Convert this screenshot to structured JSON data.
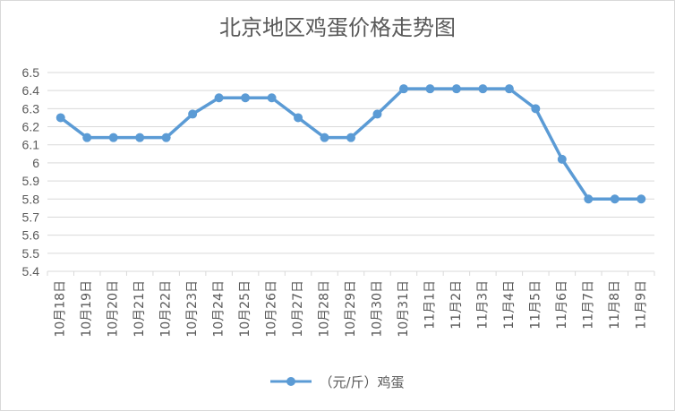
{
  "chart_data": {
    "type": "line",
    "title": "北京地区鸡蛋价格走势图",
    "categories": [
      "10月18日",
      "10月19日",
      "10月20日",
      "10月21日",
      "10月22日",
      "10月23日",
      "10月24日",
      "10月25日",
      "10月26日",
      "10月27日",
      "10月28日",
      "10月29日",
      "10月30日",
      "10月31日",
      "11月1日",
      "11月2日",
      "11月3日",
      "11月4日",
      "11月5日",
      "11月6日",
      "11月7日",
      "11月8日",
      "11月9日"
    ],
    "series": [
      {
        "name": "（元/斤）鸡蛋",
        "color": "#5b9bd5",
        "values": [
          6.25,
          6.14,
          6.14,
          6.14,
          6.14,
          6.27,
          6.36,
          6.36,
          6.36,
          6.25,
          6.14,
          6.14,
          6.27,
          6.41,
          6.41,
          6.41,
          6.41,
          6.41,
          6.3,
          6.02,
          5.8,
          5.8,
          5.8
        ]
      }
    ],
    "ylim": [
      5.4,
      6.5
    ],
    "yticks": [
      "5.4",
      "5.5",
      "5.6",
      "5.7",
      "5.8",
      "5.9",
      "6",
      "6.1",
      "6.2",
      "6.3",
      "6.4",
      "6.5"
    ],
    "grid": true,
    "legend": "bottom",
    "xlabel": "",
    "ylabel": ""
  }
}
